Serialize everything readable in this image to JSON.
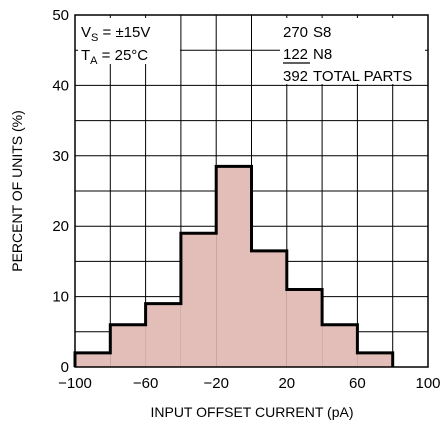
{
  "chart_data": {
    "type": "bar",
    "xlabel": "INPUT OFFSET CURRENT (pA)",
    "ylabel": "PERCENT OF UNITS (%)",
    "xlim": [
      -100,
      100
    ],
    "ylim": [
      0,
      50
    ],
    "x_ticks": [
      "−100",
      "−60",
      "−20",
      "20",
      "60",
      "100"
    ],
    "y_ticks": [
      "0",
      "10",
      "20",
      "30",
      "40",
      "50"
    ],
    "grid": true,
    "bin_edges": [
      -100,
      -80,
      -60,
      -40,
      -20,
      0,
      20,
      40,
      60,
      80
    ],
    "values": [
      2,
      6,
      9,
      19,
      28.5,
      16.5,
      11,
      6,
      2
    ],
    "bar_color": "#e3bdb8",
    "edge_color": "#000000",
    "annotations": {
      "vs_main": "V",
      "vs_sub": "S",
      "vs_value": " = ±15V",
      "ta_main": "T",
      "ta_sub": "A",
      "ta_value": " = 25°C",
      "line1_count": "270",
      "line1_name": "S8",
      "line2_count": "122",
      "line2_name": "N8",
      "line3_count": "392",
      "line3_name": "TOTAL PARTS"
    }
  }
}
